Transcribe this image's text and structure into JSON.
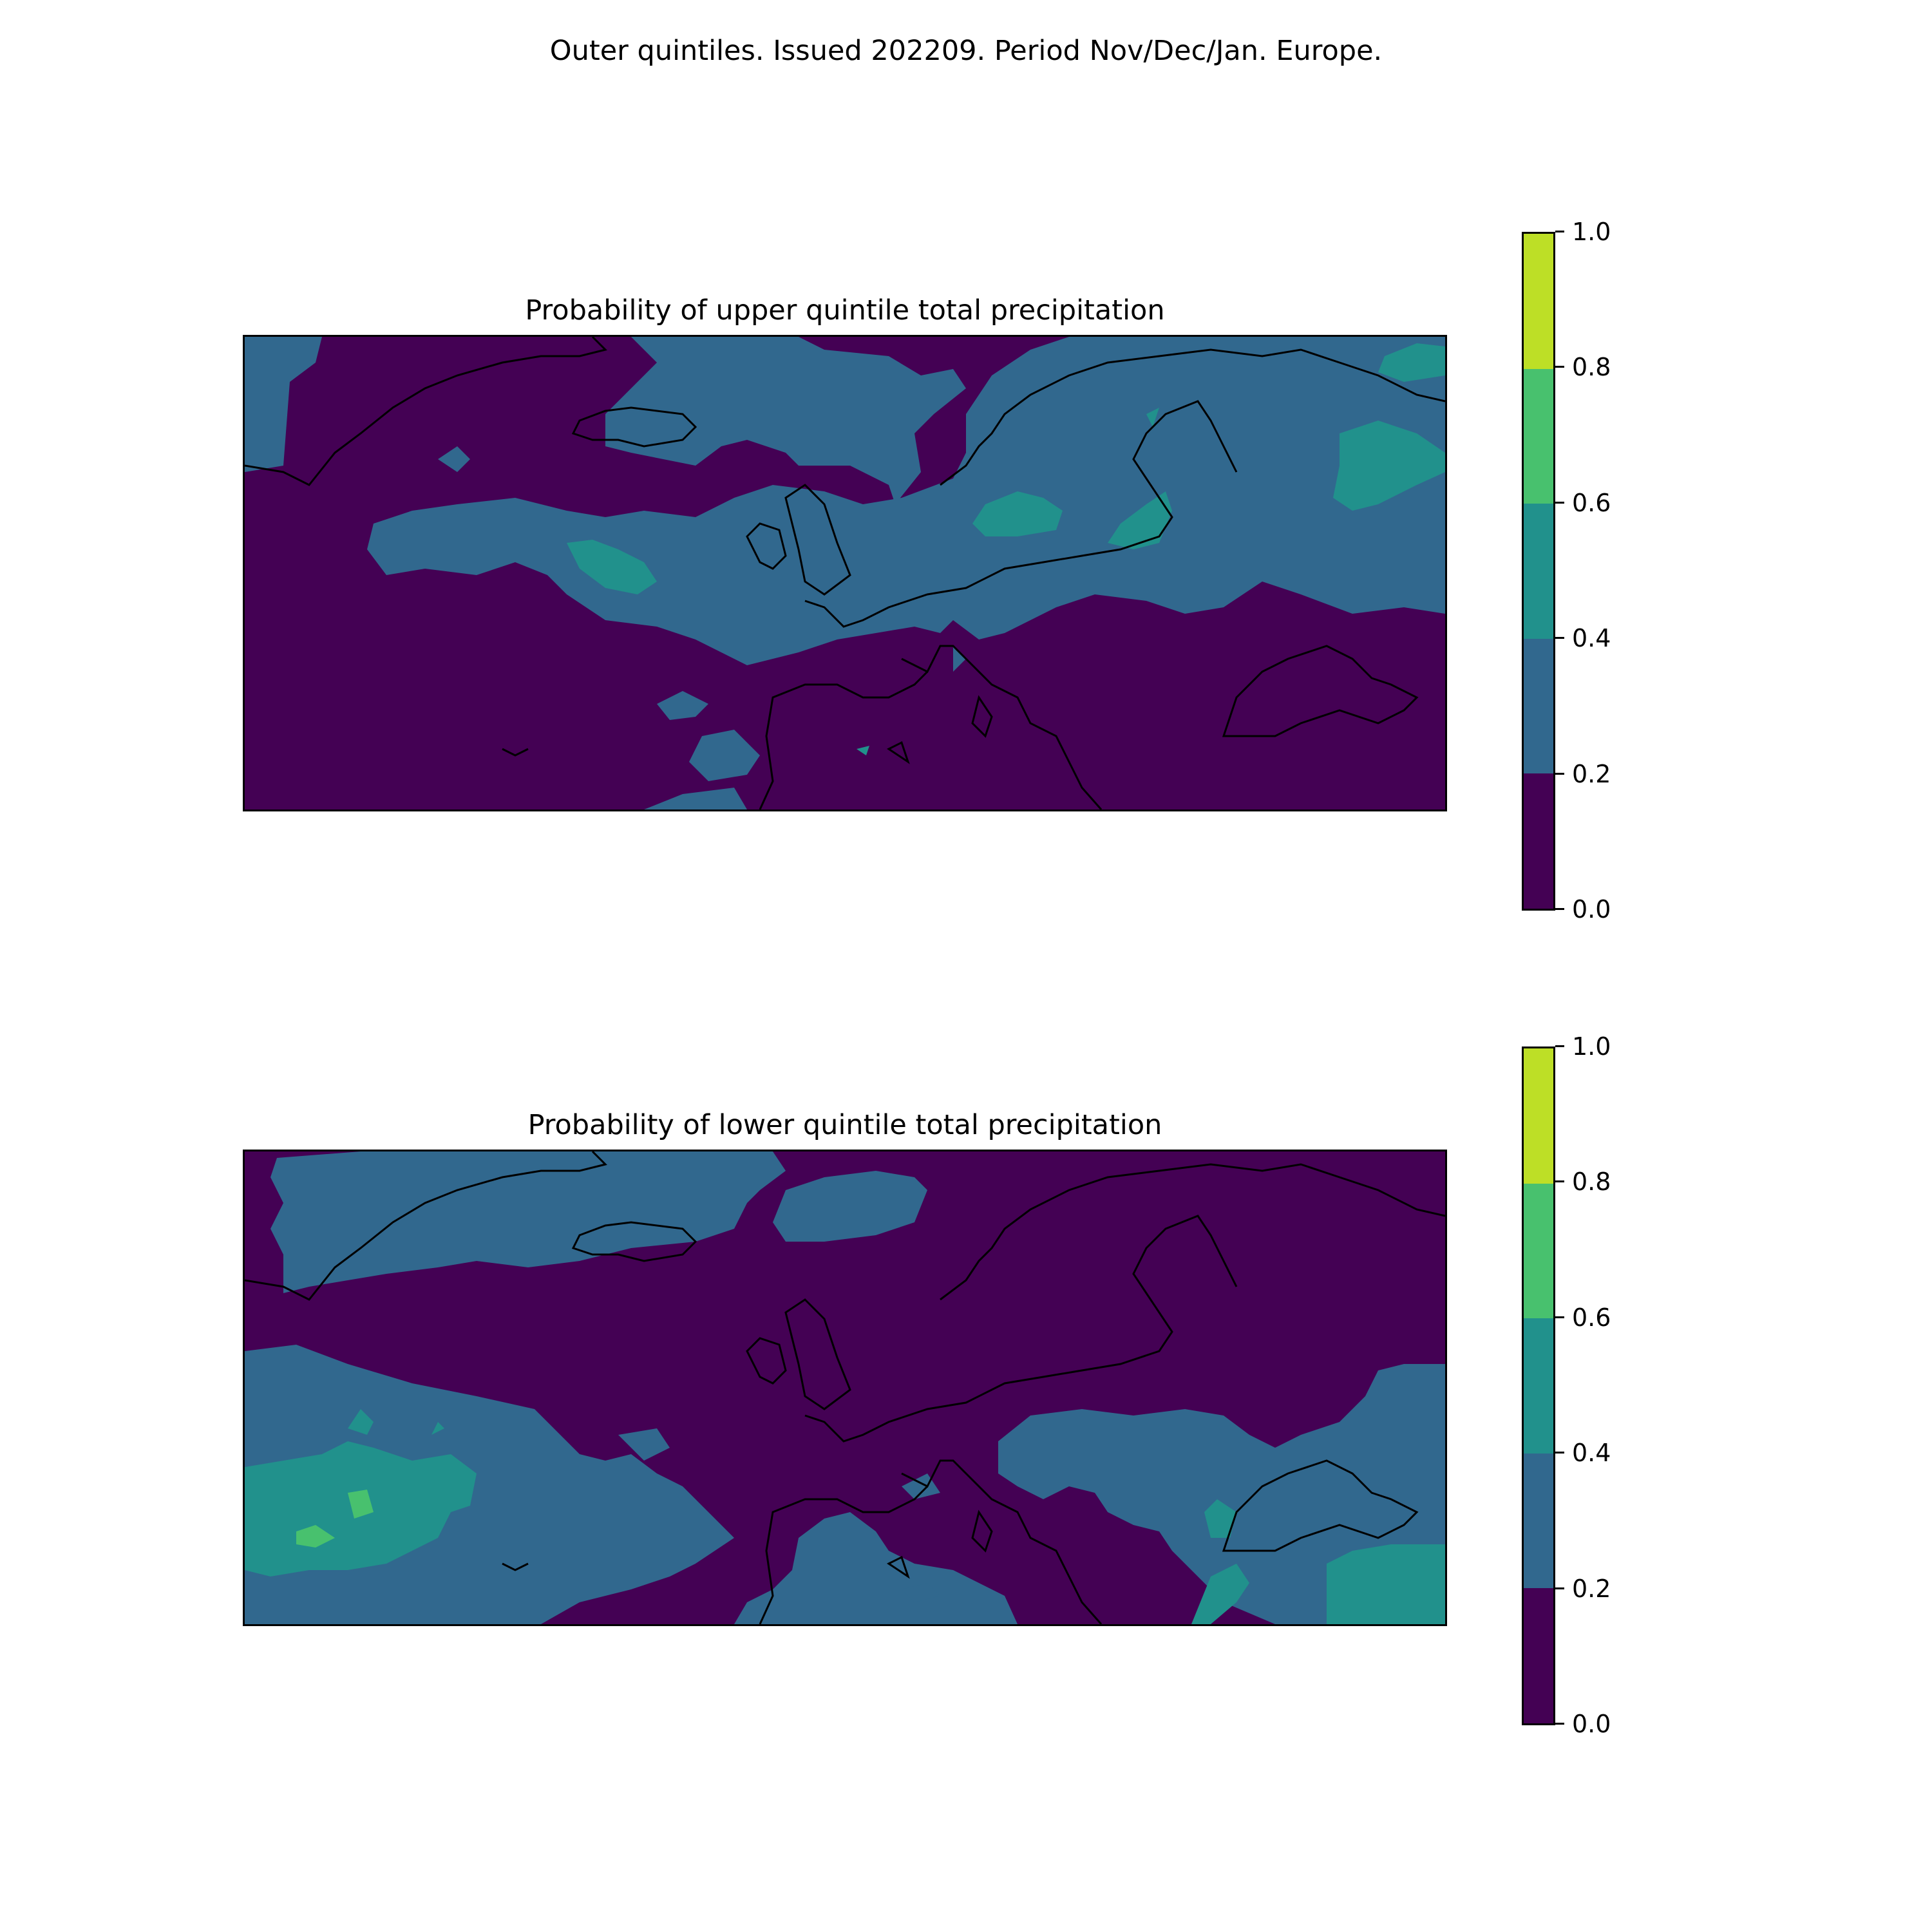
{
  "figure": {
    "suptitle": "Outer quintiles. Issued 202209. Period Nov/Dec/Jan. Europe."
  },
  "colormap": {
    "levels": [
      "0.0",
      "0.2",
      "0.4",
      "0.6",
      "0.8",
      "1.0"
    ],
    "colors": [
      "#440154",
      "#31688e",
      "#21918c",
      "#48c16e",
      "#bddf26"
    ]
  },
  "panels": [
    {
      "title": "Probability of upper quintile total precipitation",
      "dominant_class": "0.0-0.2",
      "notable_regions": [
        "Scandinavia 0.4-0.6",
        "mid-Atlantic 0.4-0.6",
        "western Russia 0.4-0.6"
      ]
    },
    {
      "title": "Probability of lower quintile total precipitation",
      "dominant_class": "0.0-0.2",
      "notable_regions": [
        "subtropical Atlantic 0.4-0.8",
        "Turkey/eastern Mediterranean 0.4-0.6"
      ]
    }
  ]
}
